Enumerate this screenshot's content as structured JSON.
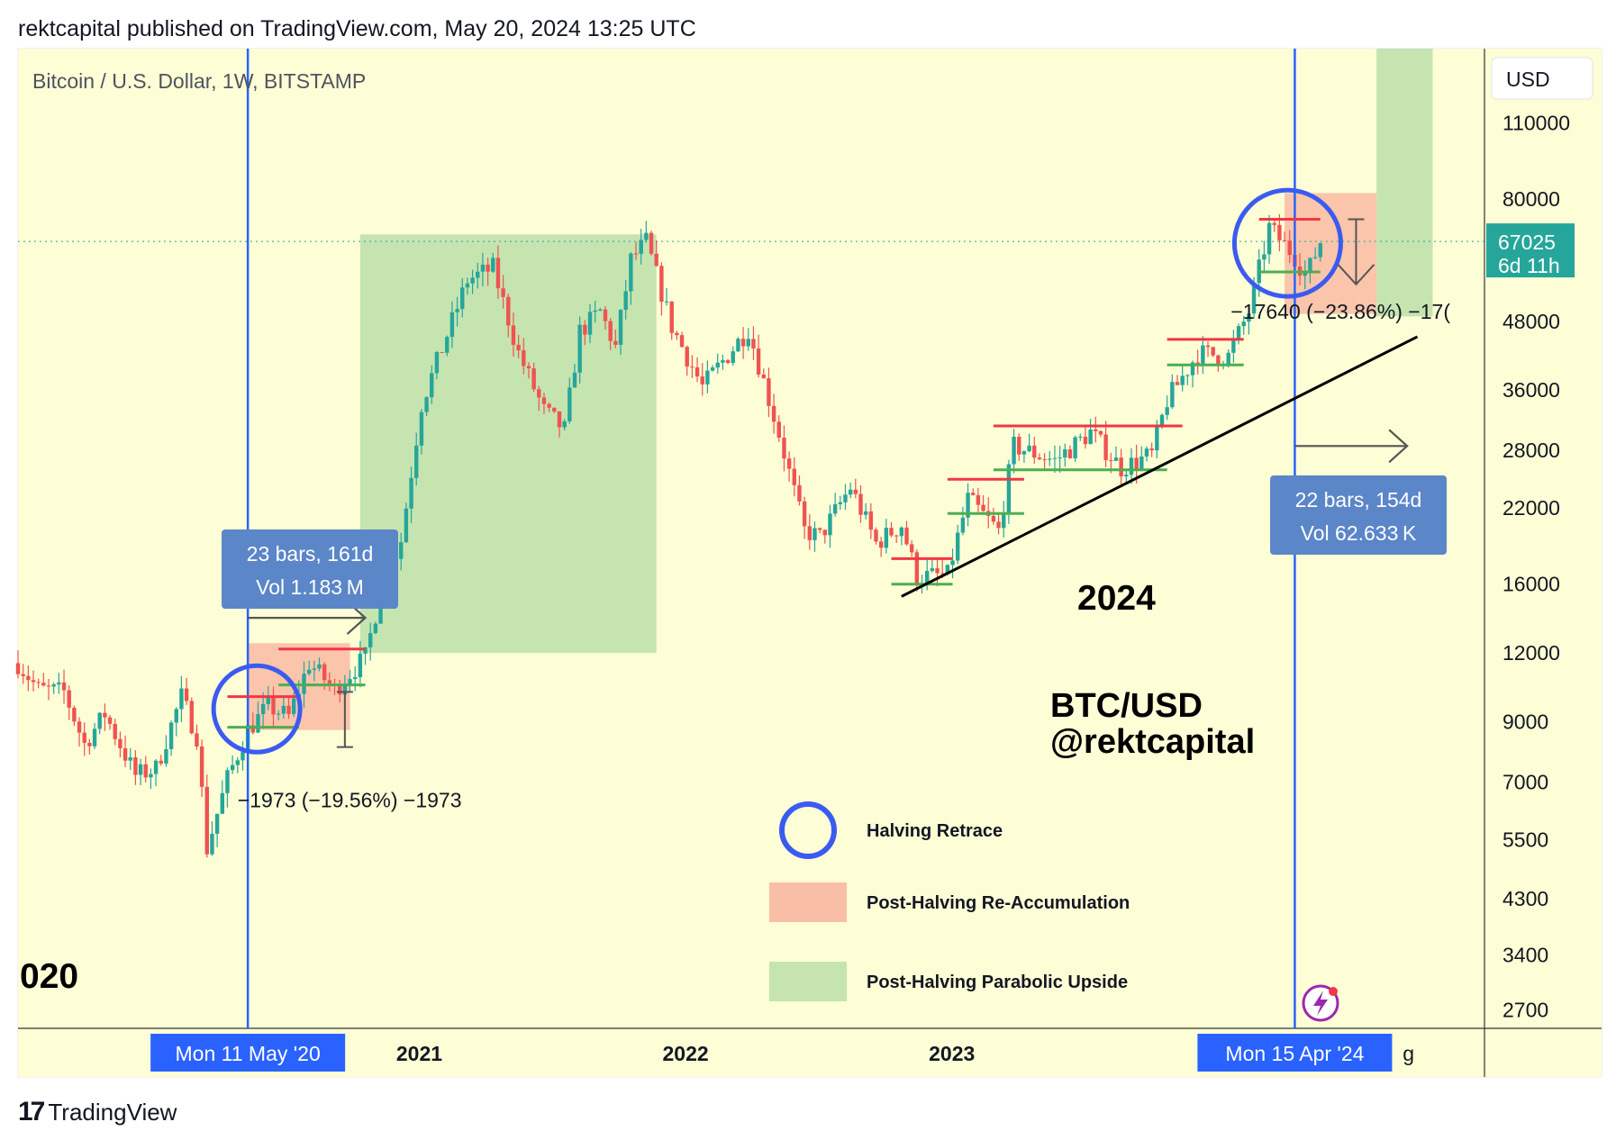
{
  "header": {
    "publisher_line": "rektcapital published on TradingView.com, May 20, 2024 13:25 UTC"
  },
  "footer": {
    "logo_mark": "17",
    "brand": "TradingView"
  },
  "chart_data": {
    "type": "candlestick",
    "title": "Bitcoin / U.S. Dollar, 1W, BITSTAMP",
    "currency_button": "USD",
    "y_scale": "log",
    "ylim": [
      2500,
      150000
    ],
    "xlim": [
      "2019-07-01",
      "2024-12-31"
    ],
    "y_ticks": [
      "110000",
      "80000",
      "48000",
      "36000",
      "28000",
      "22000",
      "16000",
      "12000",
      "9000",
      "7000",
      "5500",
      "4300",
      "3400",
      "2700"
    ],
    "x_ticks": [
      {
        "label": "20",
        "date": "2020-05-01"
      },
      {
        "label": "2021",
        "date": "2021-01-01"
      },
      {
        "label": "2022",
        "date": "2022-01-01"
      },
      {
        "label": "2023",
        "date": "2023-01-01"
      },
      {
        "label": "2",
        "date": "2024-01-01"
      }
    ],
    "x_tail_label": "g",
    "last_price": {
      "value": "67025",
      "countdown": "6d 11h",
      "price": 67025,
      "color": "#26a69a"
    },
    "halving_lines": [
      {
        "date": "2020-05-11",
        "label": "Mon 11 May '20"
      },
      {
        "date": "2024-04-15",
        "label": "Mon 15 Apr '24"
      }
    ],
    "price_path": [
      [
        "2019-07-01",
        11500
      ],
      [
        "2019-07-29",
        10300
      ],
      [
        "2019-09-02",
        10200
      ],
      [
        "2019-09-30",
        8200
      ],
      [
        "2019-10-28",
        9300
      ],
      [
        "2019-12-09",
        7200
      ],
      [
        "2020-01-06",
        7400
      ],
      [
        "2020-02-10",
        10000
      ],
      [
        "2020-03-02",
        8500
      ],
      [
        "2020-03-16",
        5300
      ],
      [
        "2020-04-13",
        7100
      ],
      [
        "2020-05-11",
        8700
      ],
      [
        "2020-06-08",
        9600
      ],
      [
        "2020-07-06",
        9200
      ],
      [
        "2020-08-03",
        11500
      ],
      [
        "2020-09-07",
        10300
      ],
      [
        "2020-10-19",
        11800
      ],
      [
        "2020-11-09",
        15500
      ],
      [
        "2020-12-07",
        19200
      ],
      [
        "2021-01-04",
        34000
      ],
      [
        "2021-02-15",
        48000
      ],
      [
        "2021-03-08",
        57000
      ],
      [
        "2021-04-12",
        60000
      ],
      [
        "2021-05-17",
        42000
      ],
      [
        "2021-06-21",
        33000
      ],
      [
        "2021-07-19",
        30500
      ],
      [
        "2021-08-09",
        46000
      ],
      [
        "2021-09-06",
        50000
      ],
      [
        "2021-09-27",
        43000
      ],
      [
        "2021-10-18",
        62000
      ],
      [
        "2021-11-08",
        67000
      ],
      [
        "2021-12-13",
        47000
      ],
      [
        "2022-01-24",
        36500
      ],
      [
        "2022-03-28",
        46500
      ],
      [
        "2022-05-09",
        30000
      ],
      [
        "2022-06-13",
        20000
      ],
      [
        "2022-07-04",
        19500
      ],
      [
        "2022-08-15",
        24000
      ],
      [
        "2022-09-19",
        19000
      ],
      [
        "2022-10-24",
        20500
      ],
      [
        "2022-11-14",
        16500
      ],
      [
        "2022-12-26",
        16600
      ],
      [
        "2023-01-23",
        22800
      ],
      [
        "2023-03-06",
        20000
      ],
      [
        "2023-03-27",
        28500
      ],
      [
        "2023-05-22",
        26800
      ],
      [
        "2023-07-10",
        30200
      ],
      [
        "2023-08-21",
        26000
      ],
      [
        "2023-10-02",
        27500
      ],
      [
        "2023-10-23",
        34500
      ],
      [
        "2023-12-04",
        42000
      ],
      [
        "2024-01-15",
        41500
      ],
      [
        "2024-02-12",
        50000
      ],
      [
        "2024-03-11",
        71000
      ],
      [
        "2024-04-15",
        63000
      ],
      [
        "2024-05-01",
        58000
      ],
      [
        "2024-05-20",
        67025
      ]
    ],
    "green_zone_2021": {
      "start": "2020-10-12",
      "end": "2021-11-22",
      "low": 12000,
      "high": 69000
    },
    "green_zone_2024": {
      "start": "2024-08-05",
      "end": "2024-10-21",
      "low": 49000,
      "high": 150000
    },
    "pink_zone_2020": {
      "start": "2020-05-11",
      "end": "2020-09-28",
      "low": 8700,
      "high": 12500
    },
    "pink_zone_2024": {
      "start": "2024-04-01",
      "end": "2024-08-05",
      "low": 49500,
      "high": 82000
    },
    "range_levels": [
      {
        "start": "2020-04-13",
        "end": "2020-07-20",
        "price": 10000,
        "kind": "resistance"
      },
      {
        "start": "2020-04-13",
        "end": "2020-07-20",
        "price": 8800,
        "kind": "support"
      },
      {
        "start": "2020-06-22",
        "end": "2020-10-19",
        "price": 12200,
        "kind": "resistance"
      },
      {
        "start": "2020-06-22",
        "end": "2020-10-19",
        "price": 10500,
        "kind": "support"
      },
      {
        "start": "2022-10-10",
        "end": "2023-01-02",
        "price": 17800,
        "kind": "resistance"
      },
      {
        "start": "2022-10-10",
        "end": "2023-01-02",
        "price": 16000,
        "kind": "support"
      },
      {
        "start": "2022-12-26",
        "end": "2023-04-10",
        "price": 24800,
        "kind": "resistance"
      },
      {
        "start": "2022-12-26",
        "end": "2023-04-10",
        "price": 21500,
        "kind": "support"
      },
      {
        "start": "2023-02-27",
        "end": "2023-11-13",
        "price": 31000,
        "kind": "resistance"
      },
      {
        "start": "2023-02-27",
        "end": "2023-10-23",
        "price": 25800,
        "kind": "support"
      },
      {
        "start": "2023-10-23",
        "end": "2024-02-05",
        "price": 44500,
        "kind": "resistance"
      },
      {
        "start": "2023-10-23",
        "end": "2024-02-05",
        "price": 40000,
        "kind": "support"
      },
      {
        "start": "2024-02-26",
        "end": "2024-05-20",
        "price": 73500,
        "kind": "resistance"
      },
      {
        "start": "2024-02-26",
        "end": "2024-05-20",
        "price": 59000,
        "kind": "support"
      }
    ],
    "trendline": {
      "start": [
        "2022-10-24",
        15200
      ],
      "end": [
        "2024-09-30",
        45000
      ]
    },
    "measures": [
      {
        "date": "2020-09-21",
        "from": 10200,
        "to": 8100,
        "label": "−1973 (−19.56%) −1973"
      },
      {
        "date": "2024-07-08",
        "from": 73500,
        "to": 56000,
        "label": "−17640 (−23.86%) −17("
      }
    ],
    "duration_boxes": [
      {
        "line1": "23 bars, 161d",
        "line2": "Vol 1.183 M",
        "arrow_start": "2020-05-11",
        "arrow_end": "2020-10-19",
        "arrow_price": 13900
      },
      {
        "line1": "22 bars, 154d",
        "line2": "Vol 62.633 K",
        "arrow_start": "2024-04-15",
        "arrow_end": "2024-09-16",
        "arrow_price": 28500
      }
    ],
    "annotations": {
      "year_label": "2024",
      "year_label_left": "020",
      "pair": "BTC/USD",
      "handle": "@rektcapital"
    },
    "legend": [
      {
        "label": "Halving Retrace",
        "symbol": "circle",
        "color": "#3b5bf0"
      },
      {
        "label": "Post-Halving Re-Accumulation",
        "symbol": "rect",
        "color": "#f9bfa6"
      },
      {
        "label": "Post-Halving Parabolic Upside",
        "symbol": "rect",
        "color": "#c5e4b0"
      }
    ],
    "colors": {
      "background": "#fdfdd6",
      "up": "#26a69a",
      "down": "#ef5350",
      "halving_line": "#2962ff",
      "resistance": "#f23645",
      "support": "#4caf50"
    }
  }
}
